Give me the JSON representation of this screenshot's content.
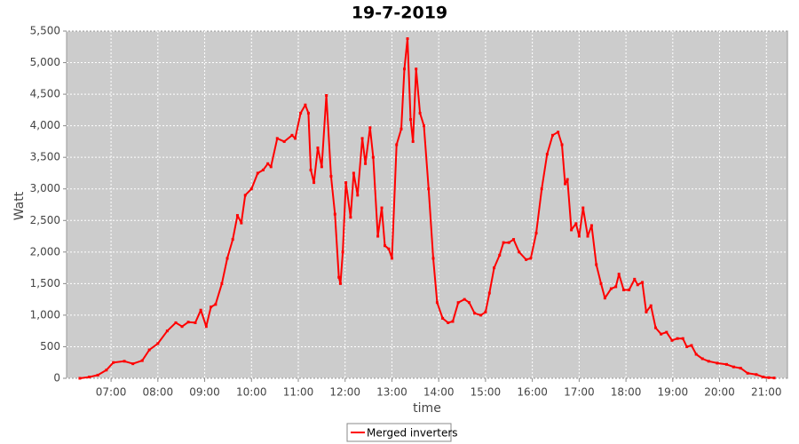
{
  "chart_data": {
    "type": "line",
    "title": "19-7-2019",
    "x_label": "time",
    "y_label": "Watt",
    "x": [
      "06:20",
      "06:32",
      "06:43",
      "06:54",
      "07:03",
      "07:17",
      "07:28",
      "07:40",
      "07:49",
      "08:00",
      "08:12",
      "08:23",
      "08:31",
      "08:39",
      "08:48",
      "08:55",
      "09:02",
      "09:08",
      "09:14",
      "09:22",
      "09:29",
      "09:36",
      "09:42",
      "09:47",
      "09:52",
      "10:00",
      "10:08",
      "10:15",
      "10:21",
      "10:25",
      "10:33",
      "10:42",
      "10:52",
      "10:56",
      "11:03",
      "11:09",
      "11:13",
      "11:16",
      "11:20",
      "11:25",
      "11:30",
      "11:36",
      "11:42",
      "11:47",
      "11:52",
      "11:54",
      "11:57",
      "12:01",
      "12:07",
      "12:11",
      "12:16",
      "12:22",
      "12:26",
      "12:32",
      "12:36",
      "12:42",
      "12:47",
      "12:51",
      "12:56",
      "13:00",
      "13:06",
      "13:12",
      "13:16",
      "13:20",
      "13:24",
      "13:27",
      "13:31",
      "13:36",
      "13:41",
      "13:47",
      "13:53",
      "13:58",
      "14:05",
      "14:12",
      "14:18",
      "14:25",
      "14:33",
      "14:39",
      "14:46",
      "14:54",
      "15:00",
      "15:05",
      "15:11",
      "15:18",
      "15:23",
      "15:30",
      "15:36",
      "15:43",
      "15:52",
      "15:58",
      "16:05",
      "16:12",
      "16:19",
      "16:26",
      "16:33",
      "16:38",
      "16:42",
      "16:45",
      "16:50",
      "16:56",
      "17:00",
      "17:05",
      "17:11",
      "17:16",
      "17:22",
      "17:28",
      "17:33",
      "17:41",
      "17:47",
      "17:51",
      "17:57",
      "18:04",
      "18:11",
      "18:15",
      "18:21",
      "18:26",
      "18:32",
      "18:38",
      "18:45",
      "18:52",
      "18:59",
      "19:06",
      "19:13",
      "19:18",
      "19:24",
      "19:30",
      "19:38",
      "19:46",
      "19:57",
      "20:09",
      "20:18",
      "20:27",
      "20:36",
      "20:47",
      "20:56",
      "21:03",
      "21:10"
    ],
    "series": [
      {
        "name": "Merged inverters",
        "color": "#ff0000",
        "values": [
          0,
          20,
          50,
          130,
          250,
          270,
          230,
          280,
          450,
          550,
          750,
          880,
          820,
          890,
          880,
          1080,
          820,
          1130,
          1170,
          1500,
          1900,
          2200,
          2580,
          2460,
          2900,
          3000,
          3250,
          3300,
          3400,
          3350,
          3800,
          3750,
          3850,
          3800,
          4200,
          4330,
          4200,
          3300,
          3100,
          3650,
          3350,
          4480,
          3200,
          2600,
          1600,
          1500,
          2000,
          3100,
          2550,
          3250,
          2900,
          3800,
          3400,
          3970,
          3500,
          2250,
          2700,
          2100,
          2050,
          1900,
          3700,
          3950,
          4900,
          5380,
          4100,
          3750,
          4900,
          4200,
          4000,
          3000,
          1900,
          1200,
          950,
          880,
          900,
          1200,
          1250,
          1200,
          1030,
          1000,
          1050,
          1350,
          1750,
          1950,
          2150,
          2150,
          2200,
          2000,
          1880,
          1900,
          2300,
          3000,
          3550,
          3850,
          3900,
          3700,
          3080,
          3150,
          2350,
          2450,
          2250,
          2700,
          2250,
          2420,
          1800,
          1500,
          1270,
          1420,
          1450,
          1650,
          1400,
          1400,
          1570,
          1480,
          1520,
          1050,
          1150,
          800,
          700,
          730,
          600,
          630,
          630,
          500,
          520,
          380,
          310,
          270,
          240,
          220,
          180,
          160,
          80,
          60,
          20,
          10,
          5
        ]
      }
    ],
    "xlim": [
      "06:03",
      "21:27"
    ],
    "xticks": [
      "07:00",
      "08:00",
      "09:00",
      "10:00",
      "11:00",
      "12:00",
      "13:00",
      "14:00",
      "15:00",
      "16:00",
      "17:00",
      "18:00",
      "19:00",
      "20:00",
      "21:00"
    ],
    "ylim": [
      0,
      5500
    ],
    "yticks": [
      0,
      500,
      {
        "value": 1000,
        "label": "1,000"
      },
      {
        "value": 1500,
        "label": "1,500"
      },
      {
        "value": 2000,
        "label": "2,000"
      },
      {
        "value": 2500,
        "label": "2,500"
      },
      {
        "value": 3000,
        "label": "3,000"
      },
      {
        "value": 3500,
        "label": "3,500"
      },
      {
        "value": 4000,
        "label": "4,000"
      },
      {
        "value": 4500,
        "label": "4,500"
      },
      {
        "value": 5000,
        "label": "5,000"
      },
      {
        "value": 5500,
        "label": "5,500"
      }
    ],
    "grid": true,
    "legend": "bottom"
  }
}
